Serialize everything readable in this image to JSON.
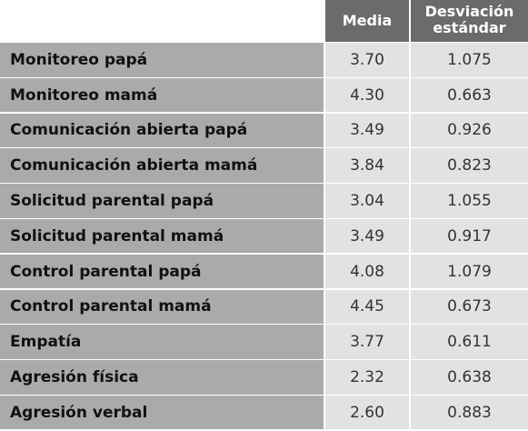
{
  "header": {
    "media": "Media",
    "sd_line1": "Desviación",
    "sd_line2": "estándar"
  },
  "rows": [
    {
      "label": "Monitoreo papá",
      "media": "3.70",
      "sd": "1.075"
    },
    {
      "label": "Monitoreo mamá",
      "media": "4.30",
      "sd": "0.663"
    },
    {
      "label": "Comunicación abierta papá",
      "media": "3.49",
      "sd": "0.926"
    },
    {
      "label": "Comunicación abierta mamá",
      "media": "3.84",
      "sd": "0.823"
    },
    {
      "label": "Solicitud parental papá",
      "media": "3.04",
      "sd": "1.055"
    },
    {
      "label": "Solicitud parental mamá",
      "media": "3.49",
      "sd": "0.917"
    },
    {
      "label": "Control parental papá",
      "media": "4.08",
      "sd": "1.079"
    },
    {
      "label": "Control parental mamá",
      "media": "4.45",
      "sd": "0.673"
    },
    {
      "label": "Empatía",
      "media": "3.77",
      "sd": "0.611"
    },
    {
      "label": "Agresión física",
      "media": "2.32",
      "sd": "0.638"
    },
    {
      "label": "Agresión verbal",
      "media": "2.60",
      "sd": "0.883"
    }
  ]
}
